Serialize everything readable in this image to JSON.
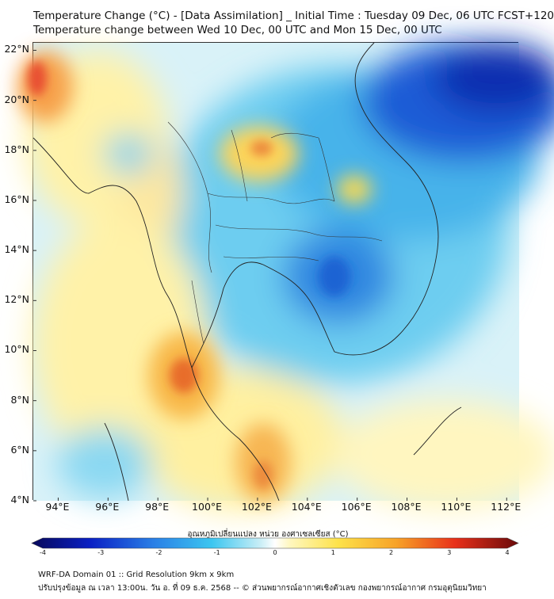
{
  "header": {
    "title_line1": "Temperature Change (°C) - [Data Assimilation] _ Initial Time : Tuesday 09 Dec, 06 UTC FCST+120",
    "title_line2": "Temperature change between Wed 10 Dec, 00 UTC and Mon 15 Dec, 00 UTC"
  },
  "map": {
    "lat_ticks": [
      "22°N",
      "20°N",
      "18°N",
      "16°N",
      "14°N",
      "12°N",
      "10°N",
      "8°N",
      "6°N",
      "4°N"
    ],
    "lon_ticks": [
      "94°E",
      "96°E",
      "98°E",
      "100°E",
      "102°E",
      "104°E",
      "106°E",
      "108°E",
      "110°E",
      "112°E"
    ],
    "lat_range": [
      4,
      22.3
    ],
    "lon_range": [
      93,
      112.5
    ]
  },
  "colorbar": {
    "label": "อุณหภูมิเปลี่ยนแปลง หน่วย องศาเซลเซียส (°C)",
    "ticks": [
      "-4",
      "-3",
      "-2",
      "-1",
      "0",
      "1",
      "2",
      "3",
      "4"
    ],
    "range": [
      -4,
      4
    ]
  },
  "footer": {
    "line1": "WRF-DA Domain 01 :: Grid Resolution 9km x 9km",
    "line2": "ปรับปรุงข้อมูล ณ เวลา 13:00น. วัน อ. ที่ 09 ธ.ค. 2568 -- © ส่วนพยากรณ์อากาศเชิงตัวเลข กองพยากรณ์อากาศ กรมอุตุนิยมวิทยา"
  }
}
